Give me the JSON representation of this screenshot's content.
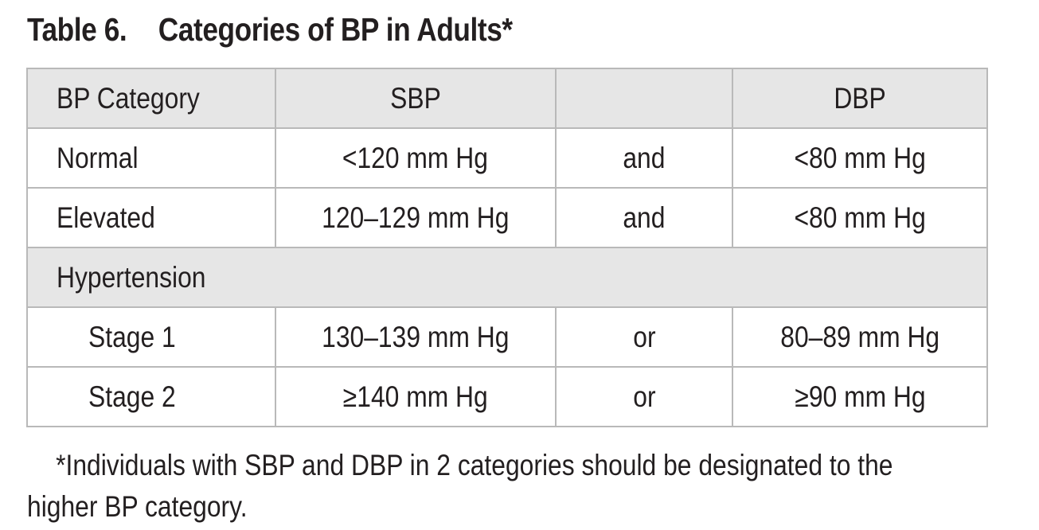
{
  "title": {
    "number": "Table 6.",
    "text": "Categories of BP in Adults*"
  },
  "table": {
    "headers": [
      "BP Category",
      "SBP",
      "",
      "DBP"
    ],
    "rows": [
      {
        "category": "Normal",
        "sbp": "<120 mm Hg",
        "conj": "and",
        "dbp": "<80 mm Hg"
      },
      {
        "category": "Elevated",
        "sbp": "120–129 mm Hg",
        "conj": "and",
        "dbp": "<80 mm Hg"
      }
    ],
    "group_label": "Hypertension",
    "group_rows": [
      {
        "category": "Stage 1",
        "sbp": "130–139 mm Hg",
        "conj": "or",
        "dbp": "80–89 mm Hg"
      },
      {
        "category": "Stage 2",
        "sbp": "≥140 mm Hg",
        "conj": "or",
        "dbp": "≥90 mm Hg"
      }
    ]
  },
  "footnote": {
    "line1": "*Individuals with SBP and DBP in 2 categories should be designated to the",
    "line2": "higher BP category."
  }
}
